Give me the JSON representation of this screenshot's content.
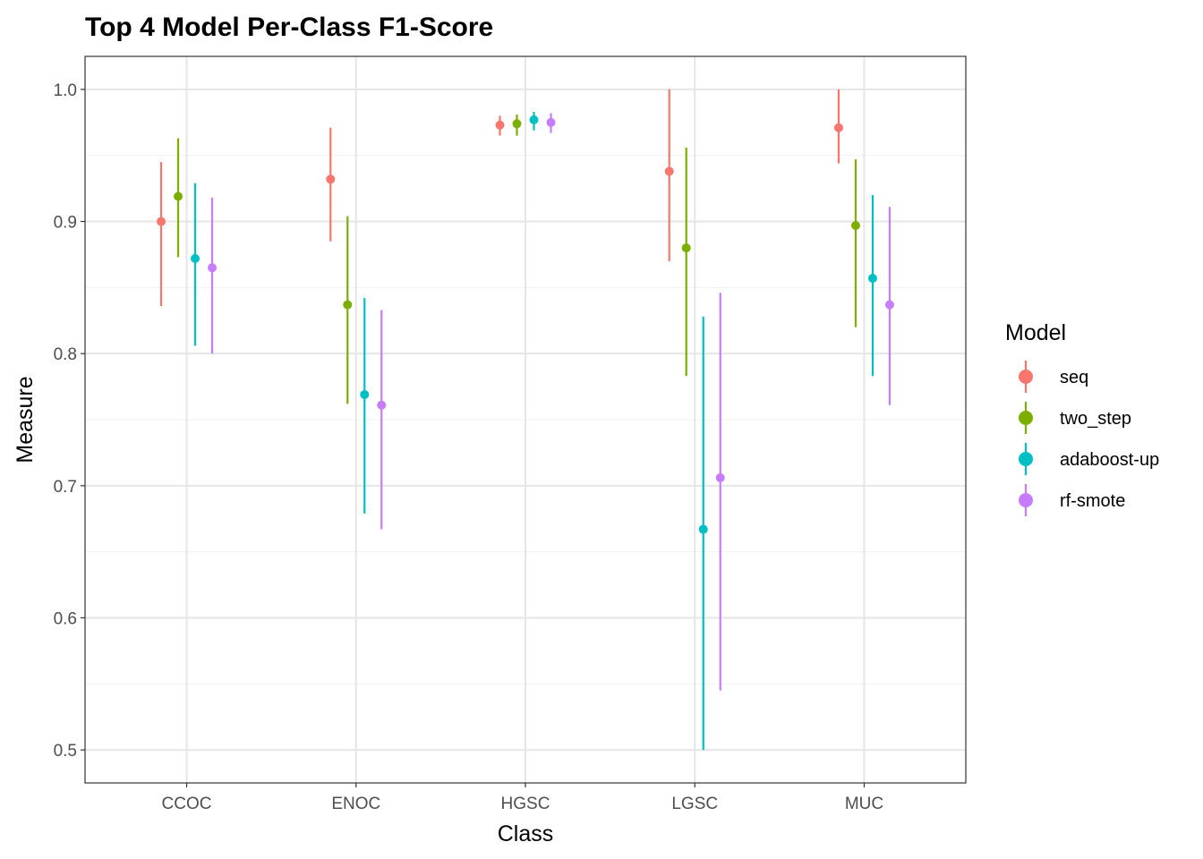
{
  "chart_data": {
    "type": "pointrange",
    "title": "Top 4 Model Per-Class F1-Score",
    "xlabel": "Class",
    "ylabel": "Measure",
    "categories": [
      "CCOC",
      "ENOC",
      "HGSC",
      "LGSC",
      "MUC"
    ],
    "ylim": [
      0.475,
      1.025
    ],
    "yticks": [
      0.5,
      0.6,
      0.7,
      0.8,
      0.9,
      1.0
    ],
    "ytick_labels": [
      "0.5",
      "0.6",
      "0.7",
      "0.8",
      "0.9",
      "1.0"
    ],
    "grid": true,
    "legend": {
      "title": "Model",
      "position": "right"
    },
    "series": [
      {
        "name": "seq",
        "color": "#F8766D",
        "values": [
          0.9,
          0.932,
          0.973,
          0.938,
          0.971
        ],
        "lower": [
          0.836,
          0.885,
          0.965,
          0.87,
          0.944
        ],
        "upper": [
          0.945,
          0.971,
          0.98,
          1.0,
          1.0
        ]
      },
      {
        "name": "two_step",
        "color": "#7CAE00",
        "values": [
          0.919,
          0.837,
          0.974,
          0.88,
          0.897
        ],
        "lower": [
          0.873,
          0.762,
          0.965,
          0.783,
          0.82
        ],
        "upper": [
          0.963,
          0.904,
          0.981,
          0.956,
          0.947
        ]
      },
      {
        "name": "adaboost-up",
        "color": "#00BFC4",
        "values": [
          0.872,
          0.769,
          0.977,
          0.667,
          0.857
        ],
        "lower": [
          0.806,
          0.679,
          0.969,
          0.5,
          0.783
        ],
        "upper": [
          0.929,
          0.842,
          0.983,
          0.828,
          0.92
        ]
      },
      {
        "name": "rf-smote",
        "color": "#C77CFF",
        "values": [
          0.865,
          0.761,
          0.975,
          0.706,
          0.837
        ],
        "lower": [
          0.8,
          0.667,
          0.967,
          0.545,
          0.761
        ],
        "upper": [
          0.918,
          0.833,
          0.982,
          0.846,
          0.911
        ]
      }
    ]
  }
}
